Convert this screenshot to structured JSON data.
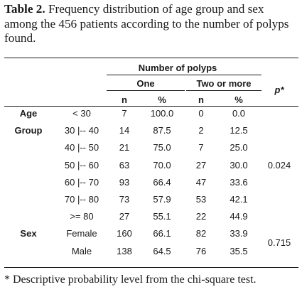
{
  "caption": {
    "label": "Table 2.",
    "text": "Frequency distribution of age group and sex among the 456 patients according to the number of polyps found."
  },
  "header": {
    "group": "Number of polyps",
    "one": "One",
    "two": "Two or more",
    "n": "n",
    "pct": "%",
    "p": "p*"
  },
  "sections": [
    {
      "label_lines": [
        "Age",
        "Group"
      ],
      "p_value": "0.024",
      "rows": [
        {
          "cat": "< 30",
          "n1": "7",
          "p1": "100.0",
          "n2": "0",
          "p2": "0.0"
        },
        {
          "cat": "30 |-- 40",
          "n1": "14",
          "p1": "87.5",
          "n2": "2",
          "p2": "12.5"
        },
        {
          "cat": "40 |-- 50",
          "n1": "21",
          "p1": "75.0",
          "n2": "7",
          "p2": "25.0"
        },
        {
          "cat": "50 |-- 60",
          "n1": "63",
          "p1": "70.0",
          "n2": "27",
          "p2": "30.0"
        },
        {
          "cat": "60 |-- 70",
          "n1": "93",
          "p1": "66.4",
          "n2": "47",
          "p2": "33.6"
        },
        {
          "cat": "70 |-- 80",
          "n1": "73",
          "p1": "57.9",
          "n2": "53",
          "p2": "42.1"
        },
        {
          "cat": ">= 80",
          "n1": "27",
          "p1": "55.1",
          "n2": "22",
          "p2": "44.9"
        }
      ]
    },
    {
      "label_lines": [
        "Sex"
      ],
      "p_value": "0.715",
      "rows": [
        {
          "cat": "Female",
          "n1": "160",
          "p1": "66.1",
          "n2": "82",
          "p2": "33.9"
        },
        {
          "cat": "Male",
          "n1": "138",
          "p1": "64.5",
          "n2": "76",
          "p2": "35.5"
        }
      ]
    }
  ],
  "footnote": "* Descriptive probability level from the chi-square test."
}
